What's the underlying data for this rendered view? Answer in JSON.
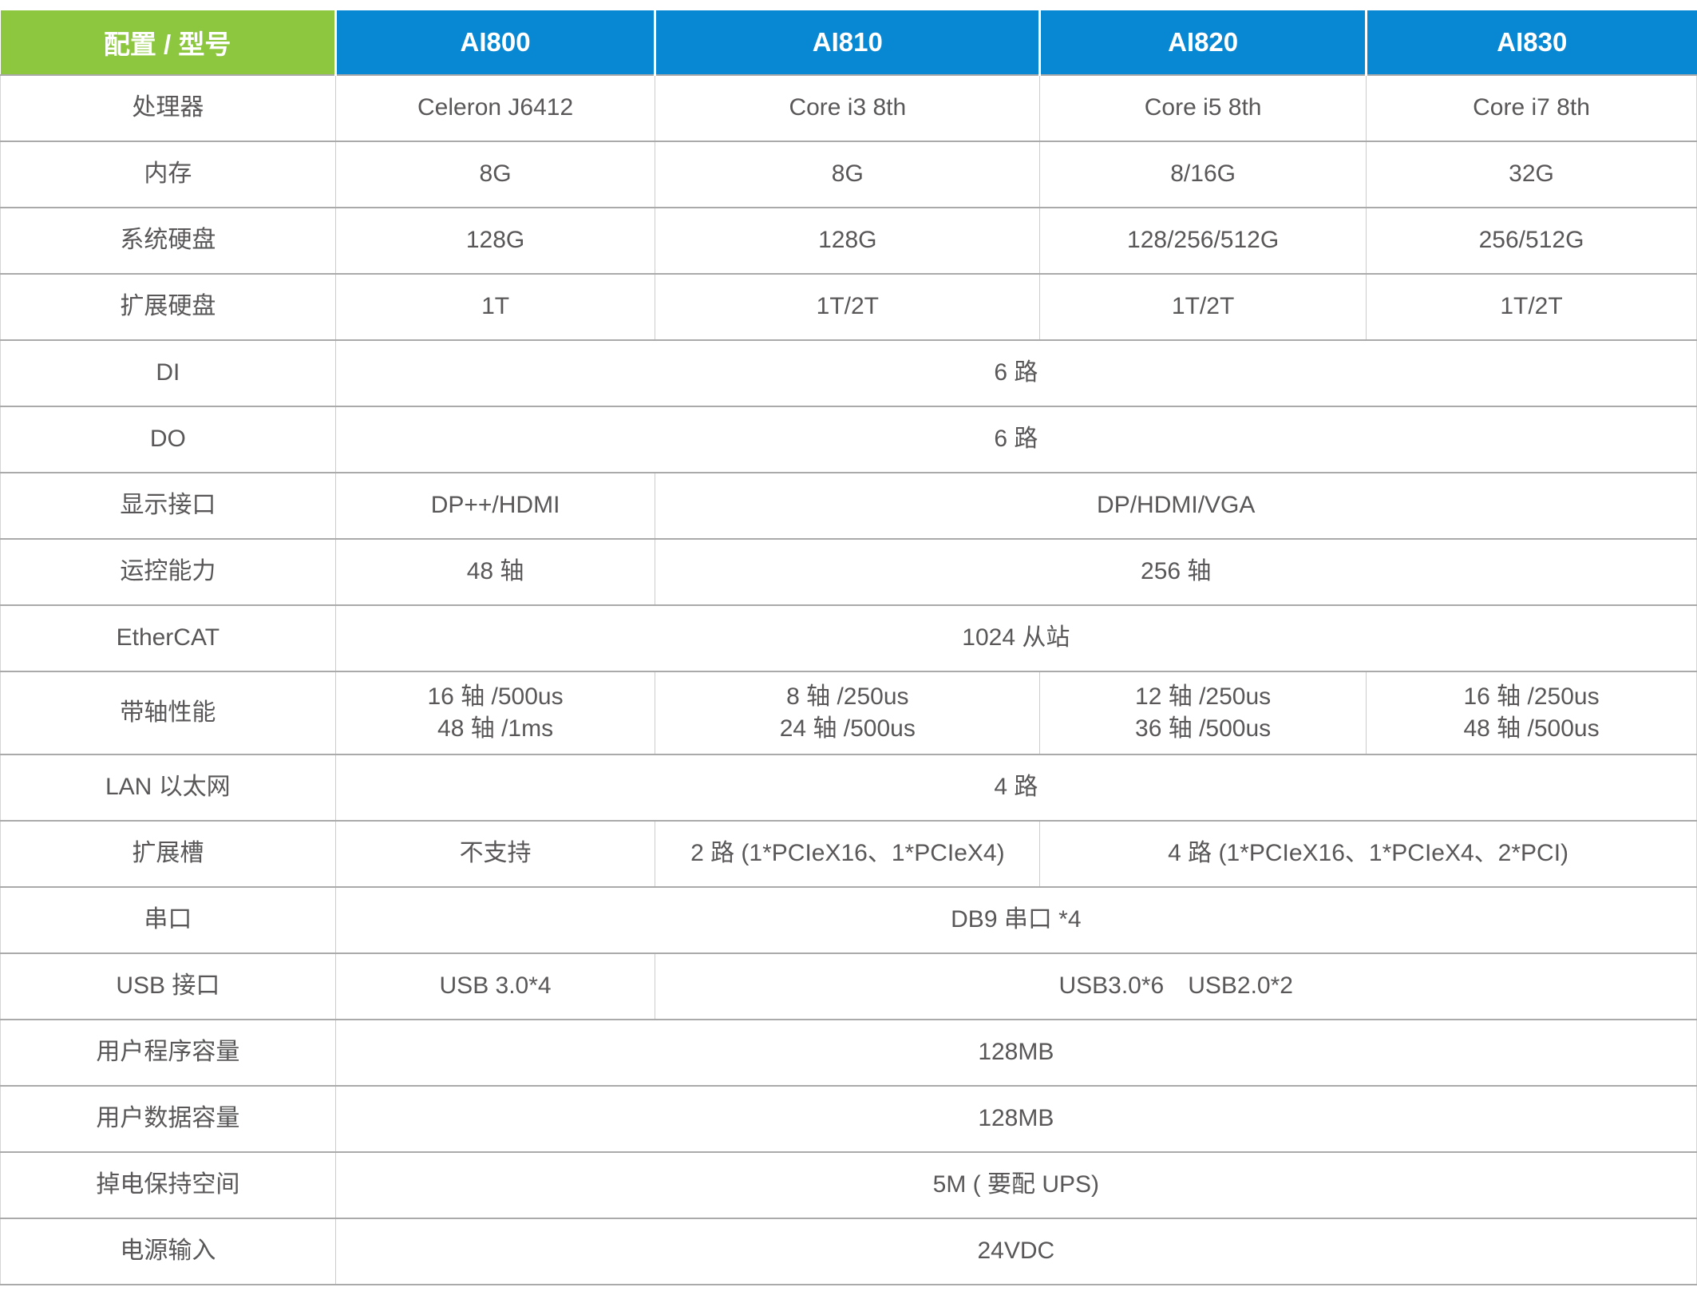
{
  "colors": {
    "header_label_bg": "#8DC63F",
    "header_model_bg": "#0887D2",
    "header_text": "#FFFFFF",
    "body_text": "#595757",
    "grid_line": "#AAAAAA"
  },
  "table": {
    "header": {
      "label": "配置 / 型号",
      "models": [
        "AI800",
        "AI810",
        "AI820",
        "AI830"
      ]
    },
    "rows": [
      {
        "label": "处理器",
        "cells": [
          {
            "span": 1,
            "text": "Celeron J6412"
          },
          {
            "span": 1,
            "text": "Core i3 8th"
          },
          {
            "span": 1,
            "text": "Core i5 8th"
          },
          {
            "span": 1,
            "text": "Core i7 8th"
          }
        ]
      },
      {
        "label": "内存",
        "cells": [
          {
            "span": 1,
            "text": "8G"
          },
          {
            "span": 1,
            "text": "8G"
          },
          {
            "span": 1,
            "text": "8/16G"
          },
          {
            "span": 1,
            "text": "32G"
          }
        ]
      },
      {
        "label": "系统硬盘",
        "cells": [
          {
            "span": 1,
            "text": "128G"
          },
          {
            "span": 1,
            "text": "128G"
          },
          {
            "span": 1,
            "text": "128/256/512G"
          },
          {
            "span": 1,
            "text": "256/512G"
          }
        ]
      },
      {
        "label": "扩展硬盘",
        "cells": [
          {
            "span": 1,
            "text": "1T"
          },
          {
            "span": 1,
            "text": "1T/2T"
          },
          {
            "span": 1,
            "text": "1T/2T"
          },
          {
            "span": 1,
            "text": "1T/2T"
          }
        ]
      },
      {
        "label": "DI",
        "cells": [
          {
            "span": 4,
            "text": "6 路"
          }
        ]
      },
      {
        "label": "DO",
        "cells": [
          {
            "span": 4,
            "text": "6 路"
          }
        ]
      },
      {
        "label": "显示接口",
        "cells": [
          {
            "span": 1,
            "text": "DP++/HDMI"
          },
          {
            "span": 3,
            "text": "DP/HDMI/VGA"
          }
        ]
      },
      {
        "label": "运控能力",
        "cells": [
          {
            "span": 1,
            "text": "48 轴"
          },
          {
            "span": 3,
            "text": "256 轴"
          }
        ]
      },
      {
        "label": "EtherCAT",
        "cells": [
          {
            "span": 4,
            "text": "1024 从站"
          }
        ]
      },
      {
        "label": "带轴性能",
        "tall": true,
        "cells": [
          {
            "span": 1,
            "text": "16 轴 /500us\n48 轴 /1ms"
          },
          {
            "span": 1,
            "text": "8 轴 /250us\n24 轴 /500us"
          },
          {
            "span": 1,
            "text": "12 轴 /250us\n36 轴 /500us"
          },
          {
            "span": 1,
            "text": "16 轴 /250us\n48 轴 /500us"
          }
        ]
      },
      {
        "label": "LAN 以太网",
        "cells": [
          {
            "span": 4,
            "text": "4 路"
          }
        ]
      },
      {
        "label": "扩展槽",
        "cells": [
          {
            "span": 1,
            "text": "不支持"
          },
          {
            "span": 1,
            "text": "2 路 (1*PCIeX16、1*PCIeX4)"
          },
          {
            "span": 2,
            "text": "4 路 (1*PCIeX16、1*PCIeX4、2*PCI)"
          }
        ]
      },
      {
        "label": "串口",
        "cells": [
          {
            "span": 4,
            "text": "DB9 串口 *4"
          }
        ]
      },
      {
        "label": "USB 接口",
        "cells": [
          {
            "span": 1,
            "text": "USB 3.0*4"
          },
          {
            "span": 3,
            "text": "USB3.0*6　USB2.0*2"
          }
        ]
      },
      {
        "label": "用户程序容量",
        "cells": [
          {
            "span": 4,
            "text": "128MB"
          }
        ]
      },
      {
        "label": "用户数据容量",
        "cells": [
          {
            "span": 4,
            "text": "128MB"
          }
        ]
      },
      {
        "label": "掉电保持空间",
        "cells": [
          {
            "span": 4,
            "text": "5M ( 要配 UPS)"
          }
        ]
      },
      {
        "label": "电源输入",
        "cells": [
          {
            "span": 4,
            "text": "24VDC"
          }
        ]
      }
    ]
  }
}
